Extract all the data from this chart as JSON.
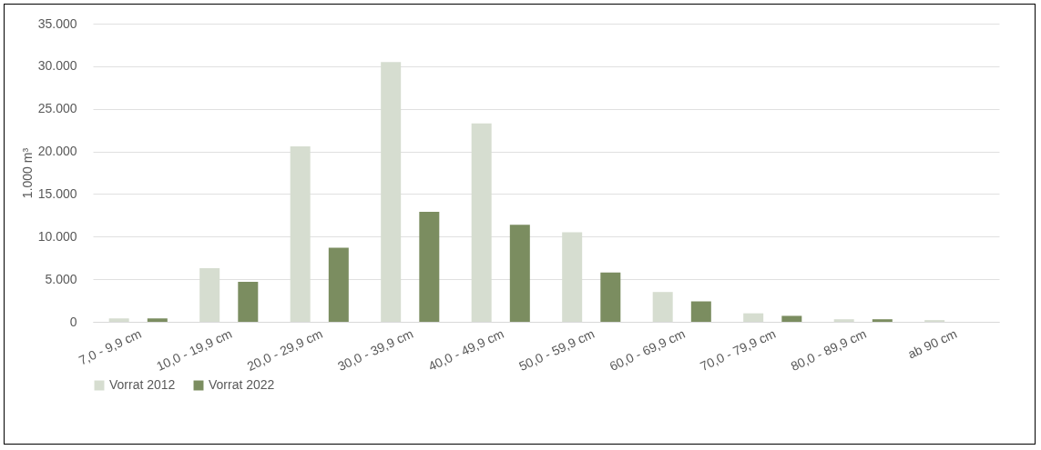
{
  "chart_data": {
    "type": "bar",
    "ylabel": "1.000 m³",
    "categories": [
      "7,0 - 9,9 cm",
      "10,0 - 19,9 cm",
      "20,0 - 29,9 cm",
      "30,0 - 39,9 cm",
      "40,0 - 49,9 cm",
      "50,0 - 59,9 cm",
      "60,0 - 69,9 cm",
      "70,0 - 79,9 cm",
      "80,0 - 89,9 cm",
      "ab 90 cm"
    ],
    "series": [
      {
        "name": "Vorrat 2012",
        "color": "#d6ddd0",
        "values": [
          400,
          6300,
          20600,
          30500,
          23300,
          10500,
          3500,
          1000,
          300,
          200
        ]
      },
      {
        "name": "Vorrat 2022",
        "color": "#7b8d60",
        "values": [
          400,
          4700,
          8700,
          12900,
          11400,
          5800,
          2400,
          700,
          300,
          null
        ]
      }
    ],
    "ylim": [
      0,
      35000
    ],
    "yticks": [
      {
        "value": 0,
        "label": "0"
      },
      {
        "value": 5000,
        "label": "5.000"
      },
      {
        "value": 10000,
        "label": "10.000"
      },
      {
        "value": 15000,
        "label": "15.000"
      },
      {
        "value": 20000,
        "label": "20.000"
      },
      {
        "value": 25000,
        "label": "25.000"
      },
      {
        "value": 30000,
        "label": "30.000"
      },
      {
        "value": 35000,
        "label": "35.000"
      }
    ],
    "grid": "y",
    "legend": "bottom"
  }
}
